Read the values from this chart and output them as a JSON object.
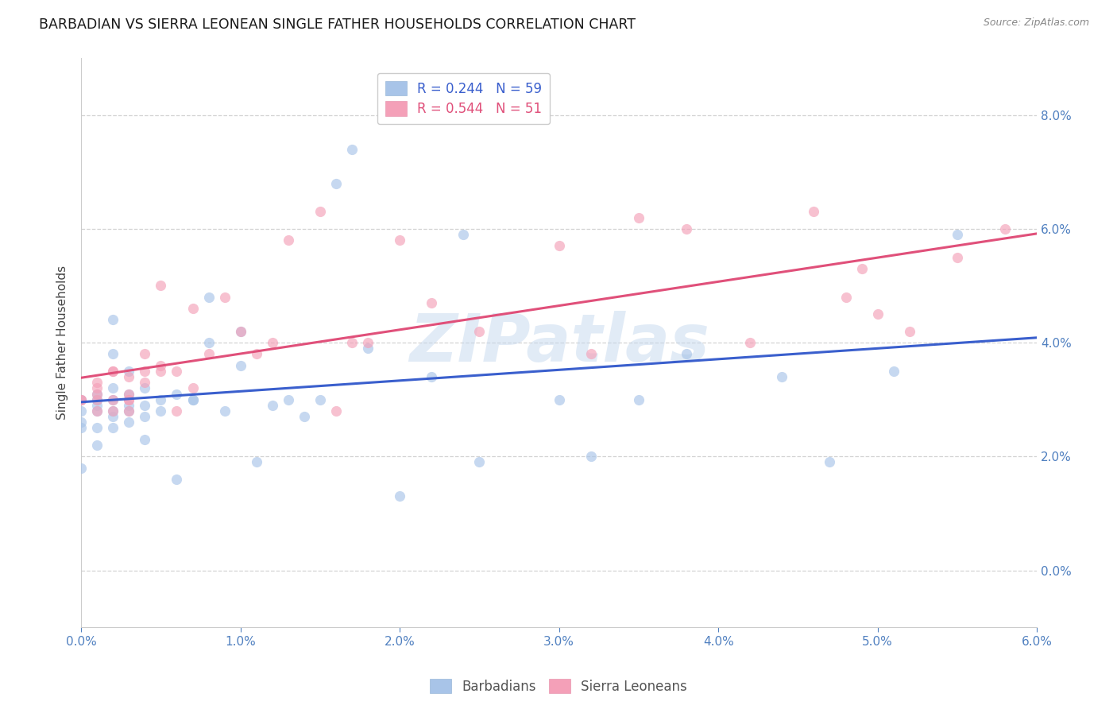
{
  "title": "BARBADIAN VS SIERRA LEONEAN SINGLE FATHER HOUSEHOLDS CORRELATION CHART",
  "source": "Source: ZipAtlas.com",
  "ylabel": "Single Father Households",
  "xlim": [
    0.0,
    0.06
  ],
  "ylim": [
    -0.01,
    0.09
  ],
  "y_tick_vals": [
    0.0,
    0.02,
    0.04,
    0.06,
    0.08
  ],
  "x_tick_vals": [
    0.0,
    0.01,
    0.02,
    0.03,
    0.04,
    0.05,
    0.06
  ],
  "barbadian_x": [
    0.0,
    0.0,
    0.0,
    0.0,
    0.0,
    0.001,
    0.001,
    0.001,
    0.001,
    0.001,
    0.001,
    0.002,
    0.002,
    0.002,
    0.002,
    0.002,
    0.002,
    0.002,
    0.003,
    0.003,
    0.003,
    0.003,
    0.003,
    0.004,
    0.004,
    0.004,
    0.004,
    0.005,
    0.005,
    0.006,
    0.006,
    0.007,
    0.007,
    0.008,
    0.008,
    0.009,
    0.01,
    0.01,
    0.011,
    0.012,
    0.013,
    0.014,
    0.015,
    0.016,
    0.017,
    0.018,
    0.02,
    0.022,
    0.024,
    0.025,
    0.03,
    0.032,
    0.035,
    0.038,
    0.044,
    0.047,
    0.051,
    0.055
  ],
  "barbadian_y": [
    0.026,
    0.018,
    0.028,
    0.025,
    0.03,
    0.028,
    0.031,
    0.022,
    0.029,
    0.025,
    0.03,
    0.03,
    0.027,
    0.025,
    0.028,
    0.032,
    0.038,
    0.044,
    0.028,
    0.029,
    0.031,
    0.026,
    0.035,
    0.027,
    0.029,
    0.032,
    0.023,
    0.03,
    0.028,
    0.031,
    0.016,
    0.03,
    0.03,
    0.048,
    0.04,
    0.028,
    0.042,
    0.036,
    0.019,
    0.029,
    0.03,
    0.027,
    0.03,
    0.068,
    0.074,
    0.039,
    0.013,
    0.034,
    0.059,
    0.019,
    0.03,
    0.02,
    0.03,
    0.038,
    0.034,
    0.019,
    0.035,
    0.059
  ],
  "sierra_x": [
    0.0,
    0.0,
    0.001,
    0.001,
    0.001,
    0.001,
    0.001,
    0.002,
    0.002,
    0.002,
    0.002,
    0.003,
    0.003,
    0.003,
    0.003,
    0.003,
    0.004,
    0.004,
    0.004,
    0.005,
    0.005,
    0.005,
    0.006,
    0.006,
    0.007,
    0.007,
    0.008,
    0.009,
    0.01,
    0.011,
    0.012,
    0.013,
    0.015,
    0.016,
    0.017,
    0.018,
    0.02,
    0.022,
    0.025,
    0.03,
    0.032,
    0.035,
    0.038,
    0.042,
    0.046,
    0.048,
    0.049,
    0.05,
    0.052,
    0.055,
    0.058
  ],
  "sierra_y": [
    0.03,
    0.03,
    0.028,
    0.031,
    0.033,
    0.03,
    0.032,
    0.03,
    0.035,
    0.028,
    0.035,
    0.03,
    0.031,
    0.034,
    0.03,
    0.028,
    0.038,
    0.033,
    0.035,
    0.05,
    0.035,
    0.036,
    0.028,
    0.035,
    0.046,
    0.032,
    0.038,
    0.048,
    0.042,
    0.038,
    0.04,
    0.058,
    0.063,
    0.028,
    0.04,
    0.04,
    0.058,
    0.047,
    0.042,
    0.057,
    0.038,
    0.062,
    0.06,
    0.04,
    0.063,
    0.048,
    0.053,
    0.045,
    0.042,
    0.055,
    0.06
  ],
  "barbadian_color": "#a8c4e8",
  "sierra_color": "#f4a0b8",
  "barbadian_line_color": "#3a5fcd",
  "sierra_line_color": "#e0507a",
  "scatter_alpha": 0.65,
  "scatter_size": 90,
  "watermark_text": "ZIPatlas",
  "background_color": "#ffffff",
  "grid_color": "#c8c8c8",
  "axis_tick_color": "#5080c0",
  "title_color": "#1a1a1a",
  "title_fontsize": 12.5,
  "tick_fontsize": 11,
  "ylabel_fontsize": 11,
  "source_text": "Source: ZipAtlas.com"
}
